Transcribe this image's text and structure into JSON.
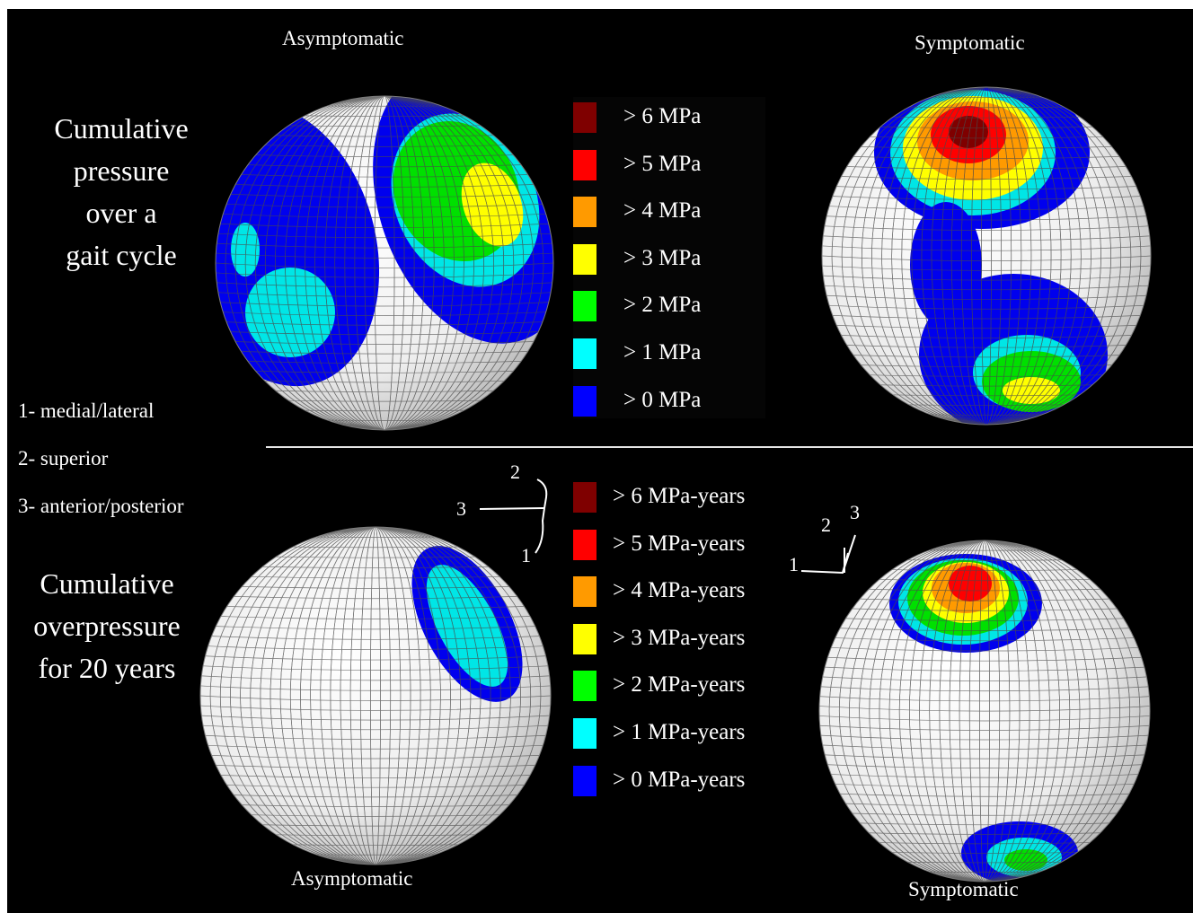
{
  "headings": {
    "top_left": "Asymptomatic",
    "top_right": "Symptomatic",
    "bottom_left": "Asymptomatic",
    "bottom_right": "Symptomatic"
  },
  "side_titles": {
    "cumulative_pressure": [
      "Cumulative",
      "pressure",
      "over a",
      "gait cycle"
    ],
    "cumulative_overpressure": [
      "Cumulative",
      "overpressure",
      "for 20 years"
    ]
  },
  "axis_key": [
    "1- medial/lateral",
    "2- superior",
    "3- anterior/posterior"
  ],
  "legend_pressure": [
    {
      "label": "> 6 MPa",
      "color": "#7f0000"
    },
    {
      "label": "> 5 MPa",
      "color": "#ff0000"
    },
    {
      "label": "> 4 MPa",
      "color": "#ff9a00"
    },
    {
      "label": "> 3 MPa",
      "color": "#ffff00"
    },
    {
      "label": "> 2 MPa",
      "color": "#00ff00"
    },
    {
      "label": "> 1 MPa",
      "color": "#00ffff"
    },
    {
      "label": "> 0 MPa",
      "color": "#0000ff"
    }
  ],
  "legend_overpressure": [
    {
      "label": "> 6 MPa-years",
      "color": "#7f0000"
    },
    {
      "label": "> 5 MPa-years",
      "color": "#ff0000"
    },
    {
      "label": "> 4 MPa-years",
      "color": "#ff9a00"
    },
    {
      "label": "> 3 MPa-years",
      "color": "#ffff00"
    },
    {
      "label": "> 2 MPa-years",
      "color": "#00ff00"
    },
    {
      "label": "> 1 MPa-years",
      "color": "#00ffff"
    },
    {
      "label": "> 0 MPa-years",
      "color": "#0000ff"
    }
  ],
  "triad_left": {
    "a": "2",
    "b": "3",
    "c": "1"
  },
  "triad_right": {
    "a": "3",
    "b": "2",
    "c": "1"
  }
}
